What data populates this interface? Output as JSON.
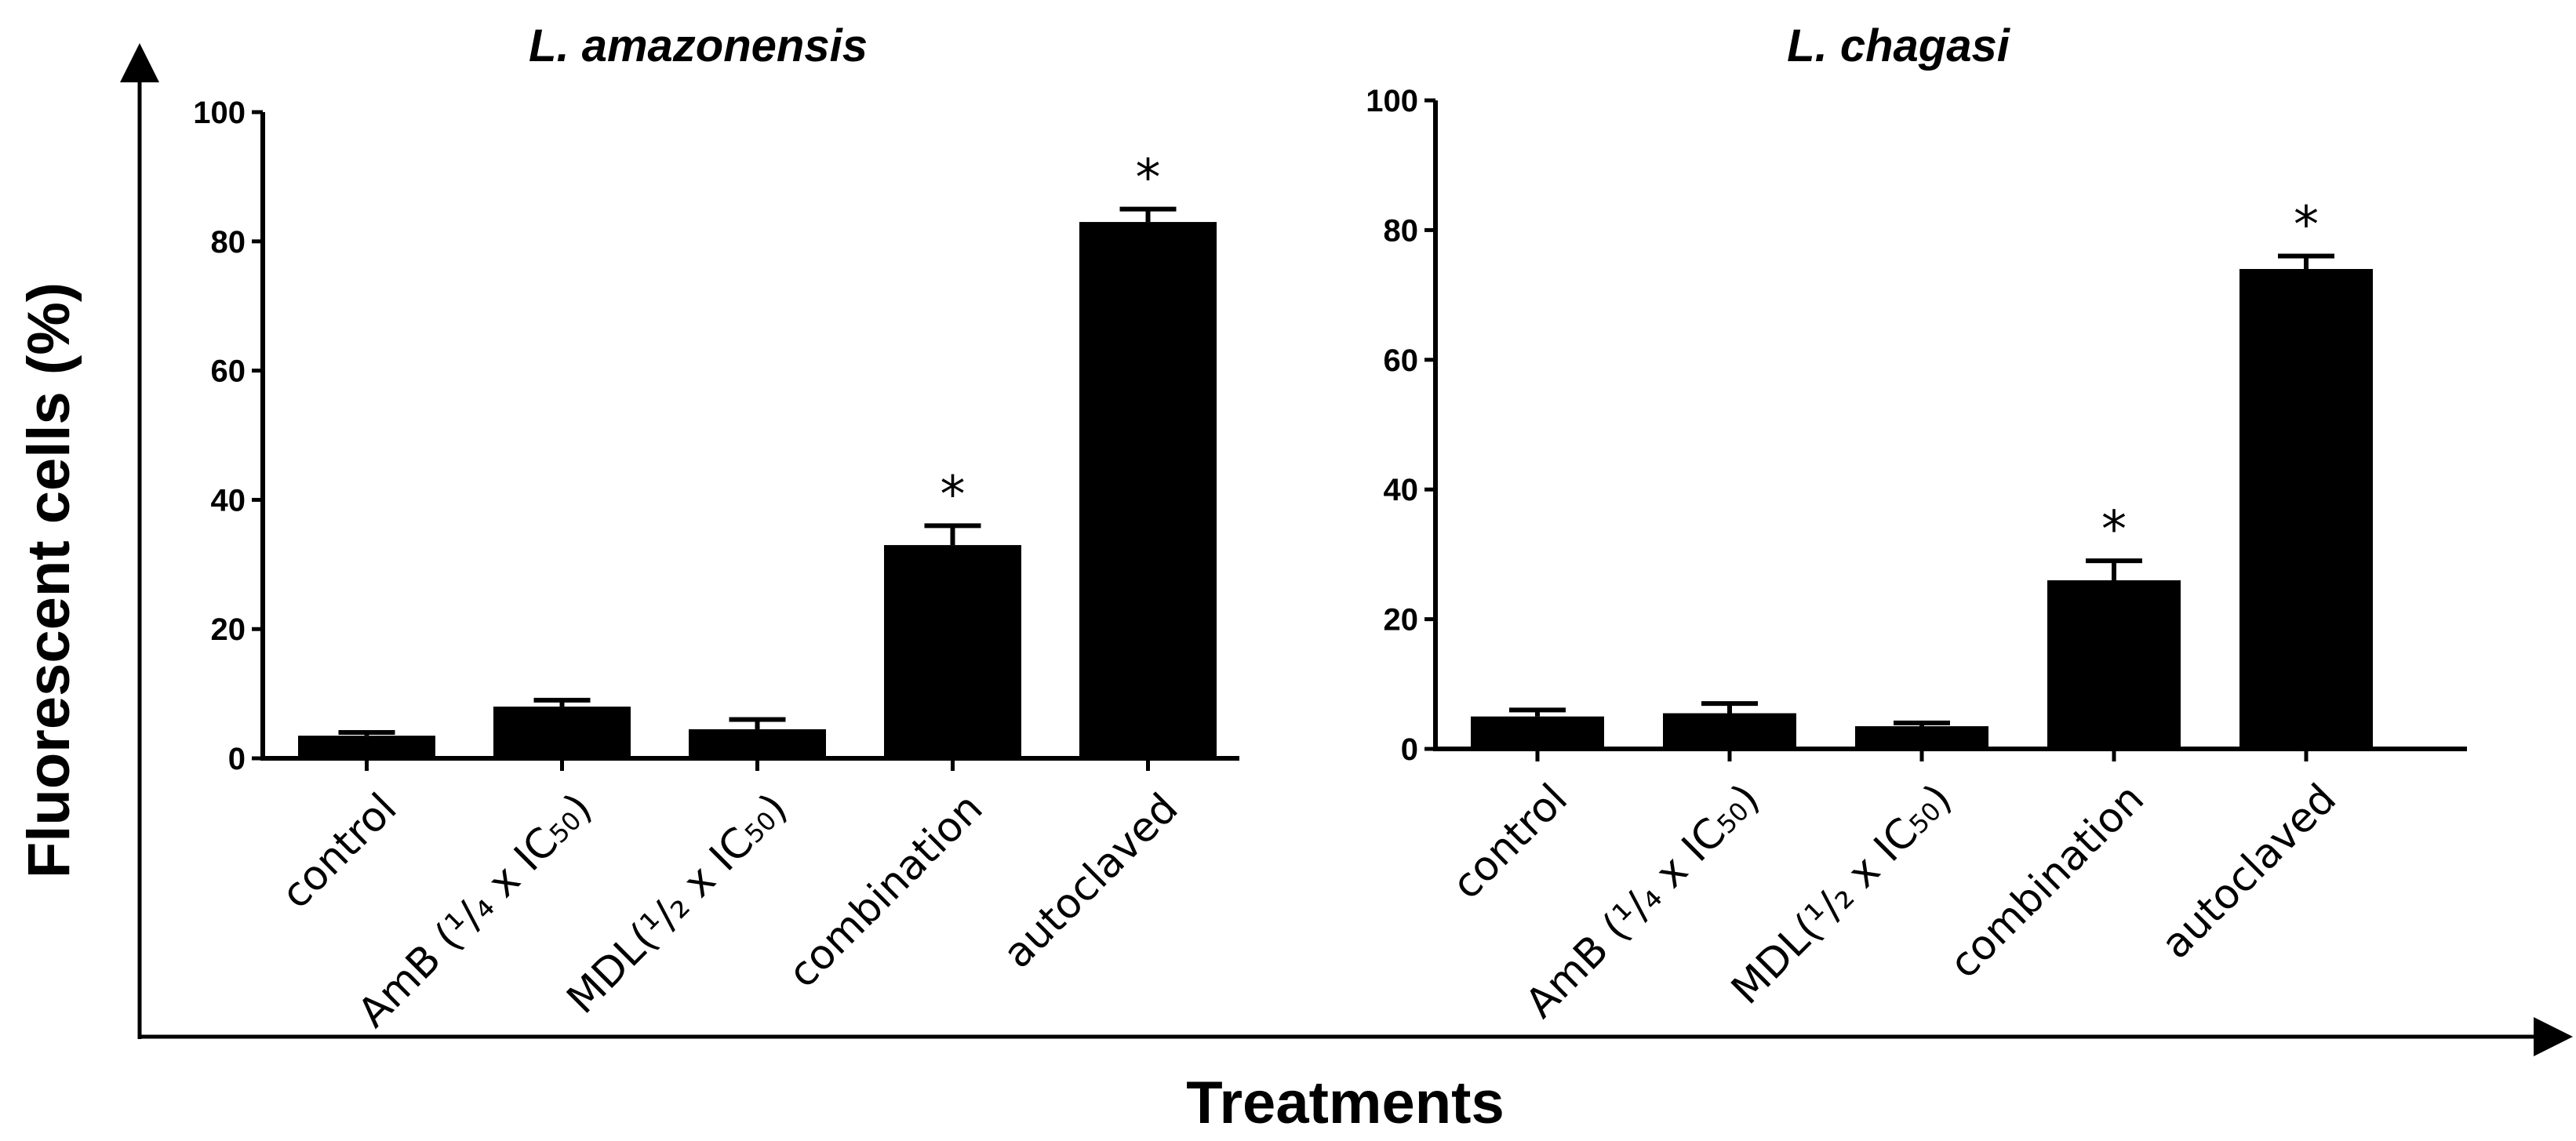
{
  "figure": {
    "ylabel": "Fluorescent cells (%)",
    "xlabel": "Treatments"
  },
  "chart_data": [
    {
      "type": "bar",
      "title": "L. amazonensis",
      "ylim": [
        0,
        100
      ],
      "yticks": [
        "0",
        "20",
        "40",
        "60",
        "80",
        "100"
      ],
      "categories": [
        {
          "main": "control",
          "sub": ""
        },
        {
          "main": "AmB (¹/₄ x IC",
          "sub": "50",
          "tail": ")"
        },
        {
          "main": "MDL(¹/₂ x IC",
          "sub": "50",
          "tail": ")"
        },
        {
          "main": "combination",
          "sub": ""
        },
        {
          "main": "autoclaved",
          "sub": ""
        }
      ],
      "values": [
        3.5,
        8,
        4.5,
        33,
        83
      ],
      "errors": [
        0.5,
        1,
        1.5,
        3,
        2
      ],
      "significance": [
        "",
        "",
        "",
        "*",
        "*"
      ]
    },
    {
      "type": "bar",
      "title": "L. chagasi",
      "ylim": [
        0,
        100
      ],
      "yticks": [
        "0",
        "20",
        "40",
        "60",
        "80",
        "100"
      ],
      "categories": [
        {
          "main": "control",
          "sub": ""
        },
        {
          "main": "AmB (¹/₄ x IC",
          "sub": "50",
          "tail": ")"
        },
        {
          "main": "MDL(¹/₂ x IC",
          "sub": "50",
          "tail": ")"
        },
        {
          "main": "combination",
          "sub": ""
        },
        {
          "main": "autoclaved",
          "sub": ""
        }
      ],
      "values": [
        5,
        5.5,
        3.5,
        26,
        74
      ],
      "errors": [
        1,
        1.5,
        0.5,
        3,
        2
      ],
      "significance": [
        "",
        "",
        "",
        "*",
        "*"
      ]
    }
  ]
}
